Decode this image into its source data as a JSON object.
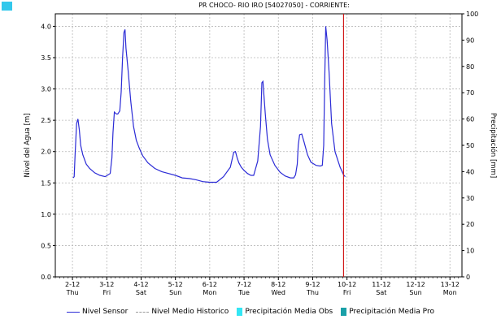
{
  "colors": {
    "sensor": "#2b2bd6",
    "historico": "#9a9a9a",
    "precip_obs": "#33e6f4",
    "precip_pro": "#1aa0a8",
    "now_marker": "#d01818",
    "grid": "#b8b8b8",
    "corner_icon": "#33c8ec"
  },
  "chart_data": {
    "type": "line",
    "title": "PR CHOCO- RIO IRO [54027050] - CORRIENTE:",
    "ylabel": "Nivel del Agua [m]",
    "y2label": "Precipitación [mm]",
    "ylim": [
      0,
      4.2
    ],
    "y2lim": [
      0,
      100
    ],
    "yticks": [
      "0.0",
      "0.5",
      "1.0",
      "1.5",
      "2.0",
      "2.5",
      "3.0",
      "3.5",
      "4.0"
    ],
    "y2ticks": [
      "0",
      "10",
      "20",
      "30",
      "40",
      "50",
      "60",
      "70",
      "80",
      "90",
      "100"
    ],
    "xlim": [
      0,
      11.85
    ],
    "xticks": [
      {
        "date": "2-12",
        "day": "Thu"
      },
      {
        "date": "3-12",
        "day": "Fri"
      },
      {
        "date": "4-12",
        "day": "Sat"
      },
      {
        "date": "5-12",
        "day": "Sun"
      },
      {
        "date": "6-12",
        "day": "Mon"
      },
      {
        "date": "7-12",
        "day": "Tue"
      },
      {
        "date": "8-12",
        "day": "Wed"
      },
      {
        "date": "9-12",
        "day": "Thu"
      },
      {
        "date": "10-12",
        "day": "Fri"
      },
      {
        "date": "11-12",
        "day": "Sat"
      },
      {
        "date": "12-12",
        "day": "Sun"
      },
      {
        "date": "13-12",
        "day": "Mon"
      }
    ],
    "grid": true,
    "now_marker_x": 8.4,
    "series": [
      {
        "name": "Nivel Sensor",
        "x": [
          0.52,
          0.55,
          0.58,
          0.62,
          0.66,
          0.7,
          0.74,
          0.8,
          0.9,
          1.0,
          1.15,
          1.3,
          1.45,
          1.6,
          1.65,
          1.68,
          1.72,
          1.78,
          1.82,
          1.88,
          1.92,
          1.96,
          2.0,
          2.03,
          2.06,
          2.12,
          2.2,
          2.28,
          2.36,
          2.45,
          2.55,
          2.7,
          2.9,
          3.1,
          3.3,
          3.5,
          3.7,
          3.9,
          4.1,
          4.3,
          4.5,
          4.7,
          4.9,
          5.1,
          5.2,
          5.25,
          5.3,
          5.35,
          5.42,
          5.5,
          5.6,
          5.7,
          5.78,
          5.9,
          5.98,
          6.02,
          6.05,
          6.08,
          6.12,
          6.18,
          6.26,
          6.4,
          6.55,
          6.7,
          6.85,
          6.95,
          7.0,
          7.05,
          7.08,
          7.12,
          7.18,
          7.25,
          7.35,
          7.45,
          7.6,
          7.72,
          7.78,
          7.82,
          7.85,
          7.88,
          7.92,
          7.98,
          8.05,
          8.15,
          8.3,
          8.4,
          8.45
        ],
        "values": [
          1.58,
          1.6,
          2.0,
          2.45,
          2.52,
          2.35,
          2.1,
          1.95,
          1.8,
          1.73,
          1.66,
          1.62,
          1.6,
          1.65,
          1.9,
          2.3,
          2.63,
          2.6,
          2.6,
          2.65,
          2.95,
          3.5,
          3.9,
          3.95,
          3.65,
          3.3,
          2.8,
          2.4,
          2.18,
          2.05,
          1.93,
          1.82,
          1.73,
          1.68,
          1.65,
          1.62,
          1.58,
          1.57,
          1.55,
          1.52,
          1.51,
          1.51,
          1.6,
          1.75,
          1.99,
          2.0,
          1.9,
          1.82,
          1.75,
          1.7,
          1.65,
          1.62,
          1.62,
          1.85,
          2.4,
          3.1,
          3.12,
          2.9,
          2.6,
          2.2,
          1.95,
          1.78,
          1.67,
          1.61,
          1.58,
          1.58,
          1.63,
          1.8,
          2.1,
          2.27,
          2.28,
          2.15,
          1.95,
          1.83,
          1.78,
          1.77,
          1.78,
          2.1,
          3.1,
          4.0,
          3.78,
          3.25,
          2.45,
          2.0,
          1.75,
          1.63,
          1.6
        ]
      },
      {
        "name": "Nivel Medio Historico",
        "x": [],
        "values": []
      },
      {
        "name": "Precipitación Media Obs",
        "x": [],
        "values": []
      },
      {
        "name": "Precipitación Media Pro",
        "x": [],
        "values": []
      }
    ]
  }
}
